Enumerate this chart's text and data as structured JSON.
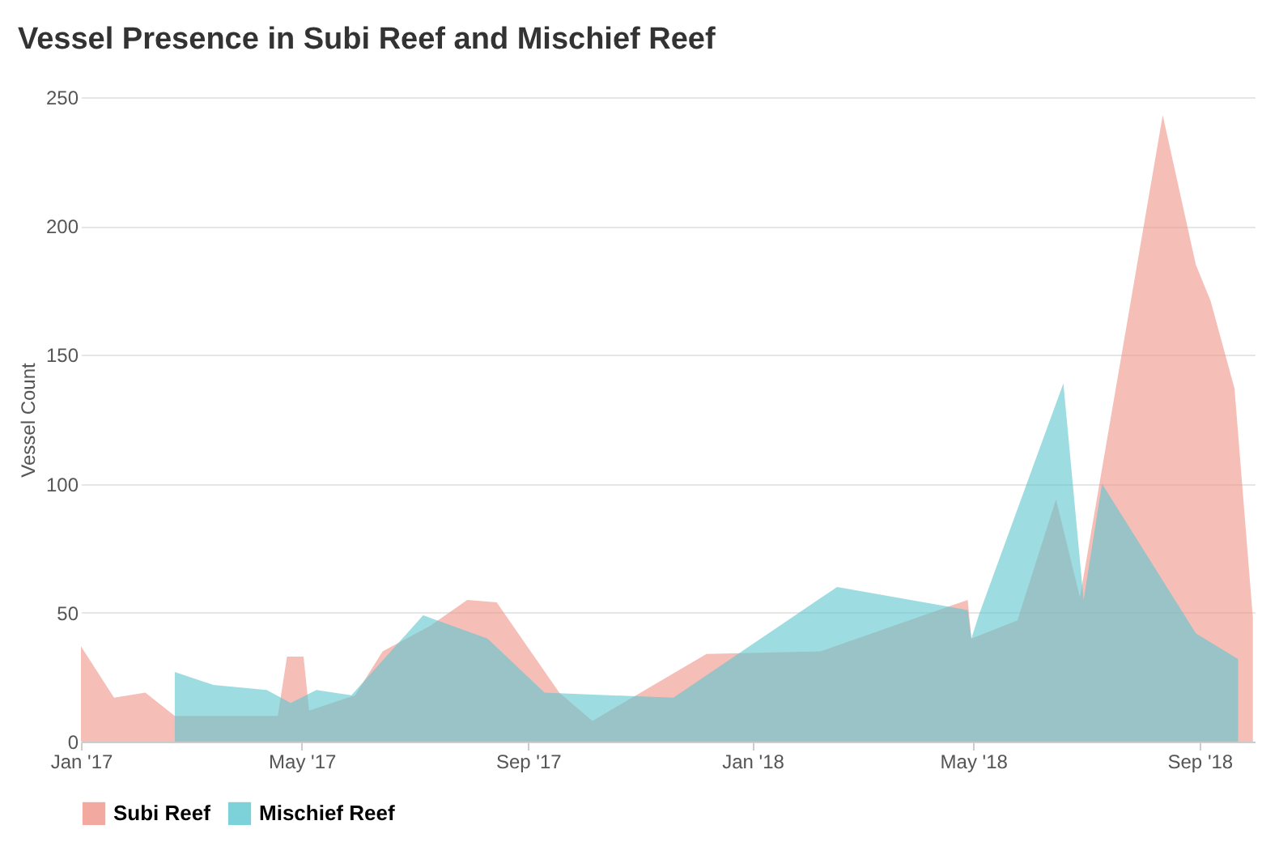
{
  "chart_data": {
    "type": "area",
    "title": "Vessel Presence in Subi Reef and Mischief Reef",
    "ylabel": "Vessel Count",
    "xlim": [
      "2017-01-01",
      "2018-10-01"
    ],
    "xticks": [
      {
        "value": "2017-01-01",
        "label": "Jan '17"
      },
      {
        "value": "2017-05-01",
        "label": "May '17"
      },
      {
        "value": "2017-09-01",
        "label": "Sep '17"
      },
      {
        "value": "2018-01-01",
        "label": "Jan '18"
      },
      {
        "value": "2018-05-01",
        "label": "May '18"
      },
      {
        "value": "2018-09-01",
        "label": "Sep '18"
      }
    ],
    "ylim": [
      0,
      250
    ],
    "yticks": [
      0,
      50,
      100,
      150,
      200,
      250
    ],
    "grid": "y",
    "legend": "bottom",
    "series": [
      {
        "name": "Subi Reef",
        "color": "#ee9488",
        "x": [
          "2017-01-01",
          "2017-01-19",
          "2017-02-05",
          "2017-02-21",
          "2017-04-18",
          "2017-04-23",
          "2017-05-02",
          "2017-05-05",
          "2017-05-30",
          "2017-06-14",
          "2017-07-10",
          "2017-07-30",
          "2017-08-15",
          "2017-09-18",
          "2017-10-06",
          "2017-12-07",
          "2018-02-07",
          "2018-04-28",
          "2018-04-30",
          "2018-05-25",
          "2018-06-15",
          "2018-06-28",
          "2018-08-12",
          "2018-08-30",
          "2018-09-07",
          "2018-09-20",
          "2018-09-30"
        ],
        "values": [
          37,
          17,
          19,
          10,
          10,
          33,
          33,
          12,
          18,
          35,
          45,
          55,
          54,
          19,
          8,
          34,
          35,
          55,
          40,
          47,
          94,
          56,
          243,
          185,
          171,
          137,
          48
        ]
      },
      {
        "name": "Mischief Reef",
        "color": "#5cc6cf",
        "x": [
          "2017-02-21",
          "2017-03-14",
          "2017-04-12",
          "2017-04-25",
          "2017-05-09",
          "2017-05-28",
          "2017-07-06",
          "2017-08-10",
          "2017-09-10",
          "2017-11-19",
          "2018-02-16",
          "2018-04-28",
          "2018-04-30",
          "2018-05-04",
          "2018-06-19",
          "2018-06-30",
          "2018-07-10",
          "2018-08-30",
          "2018-09-22"
        ],
        "values": [
          27,
          22,
          20,
          15,
          20,
          18,
          49,
          40,
          19,
          17,
          60,
          51,
          40,
          49,
          139,
          55,
          100,
          42,
          32
        ]
      }
    ]
  }
}
